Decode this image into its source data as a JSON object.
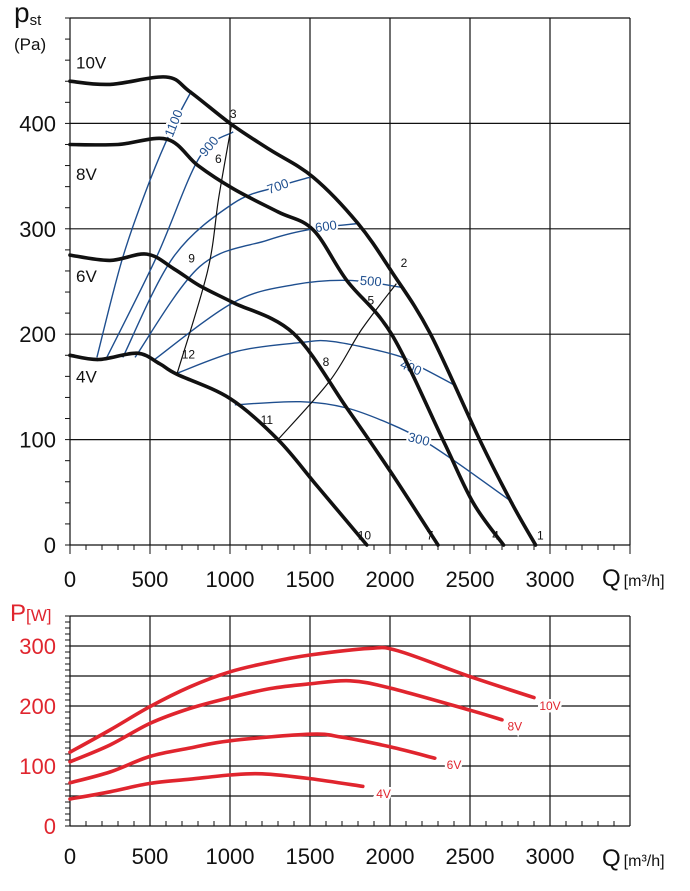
{
  "chart_data": [
    {
      "type": "line",
      "title": "",
      "ylabel_main": "p",
      "ylabel_sub": "st",
      "ylabel_unit": "(Pa)",
      "xlabel_main": "Q",
      "xlabel_unit": "[m³/h]",
      "xlim": [
        0,
        3500
      ],
      "ylim": [
        0,
        500
      ],
      "grid": true,
      "x_ticks": [
        "0",
        "500",
        "1000",
        "1500",
        "2000",
        "2500",
        "3000"
      ],
      "y_ticks": [
        "0",
        "100",
        "200",
        "300",
        "400"
      ],
      "series": [
        {
          "name": "10V",
          "label_at": [
            0,
            458
          ],
          "points": [
            [
              0,
              440
            ],
            [
              250,
              437
            ],
            [
              600,
              444
            ],
            [
              750,
              430
            ],
            [
              1010,
              399
            ],
            [
              1250,
              375
            ],
            [
              1520,
              349
            ],
            [
              1800,
              305
            ],
            [
              2012,
              259
            ],
            [
              2250,
              201
            ],
            [
              2560,
              100
            ],
            [
              2760,
              40
            ],
            [
              2910,
              0
            ]
          ]
        },
        {
          "name": "8V",
          "label_at": [
            0,
            352
          ],
          "points": [
            [
              0,
              380
            ],
            [
              300,
              380
            ],
            [
              606,
              385
            ],
            [
              800,
              360
            ],
            [
              1020,
              338
            ],
            [
              1300,
              316
            ],
            [
              1520,
              299
            ],
            [
              1730,
              251
            ],
            [
              2010,
              200
            ],
            [
              2330,
              100
            ],
            [
              2520,
              40
            ],
            [
              2710,
              0
            ]
          ]
        },
        {
          "name": "6V",
          "label_at": [
            0,
            255
          ],
          "points": [
            [
              0,
              275
            ],
            [
              250,
              270
            ],
            [
              480,
              276
            ],
            [
              650,
              262
            ],
            [
              810,
              246
            ],
            [
              1020,
              230
            ],
            [
              1395,
              201
            ],
            [
              1730,
              130
            ],
            [
              2010,
              68
            ],
            [
              2300,
              0
            ]
          ]
        },
        {
          "name": "4V",
          "label_at": [
            0,
            160
          ],
          "points": [
            [
              0,
              180
            ],
            [
              180,
              176
            ],
            [
              420,
              182
            ],
            [
              560,
              172
            ],
            [
              668,
              162
            ],
            [
              1000,
              139
            ],
            [
              1300,
              100
            ],
            [
              1550,
              55
            ],
            [
              1855,
              0
            ]
          ]
        }
      ],
      "iso_lines": [
        {
          "label": "1100",
          "label_at": [
            650,
            400
          ],
          "points": [
            [
              168,
              178
            ],
            [
              330,
              273
            ],
            [
              500,
              346
            ],
            [
              640,
              396
            ],
            [
              760,
              431
            ]
          ]
        },
        {
          "label": "900",
          "label_at": [
            870,
            378
          ],
          "points": [
            [
              230,
              178
            ],
            [
              540,
              273
            ],
            [
              810,
              368
            ],
            [
              1020,
              392
            ]
          ]
        },
        {
          "label": "700",
          "label_at": [
            1300,
            340
          ],
          "points": [
            [
              330,
              178
            ],
            [
              645,
              273
            ],
            [
              1020,
              324
            ],
            [
              1300,
              340
            ],
            [
              1500,
              349
            ]
          ]
        },
        {
          "label": "600",
          "label_at": [
            1600,
            302
          ],
          "points": [
            [
              406,
              178
            ],
            [
              810,
              264
            ],
            [
              1230,
              289
            ],
            [
              1520,
              300
            ],
            [
              1800,
              305
            ]
          ]
        },
        {
          "label": "500",
          "label_at": [
            1880,
            250
          ],
          "points": [
            [
              520,
              175
            ],
            [
              1020,
              230
            ],
            [
              1400,
              247
            ],
            [
              1750,
              251
            ],
            [
              2090,
              244
            ]
          ]
        },
        {
          "label": "400",
          "label_at": [
            2130,
            168
          ],
          "points": [
            [
              670,
              163
            ],
            [
              1050,
              184
            ],
            [
              1440,
              192
            ],
            [
              1645,
              193
            ],
            [
              2040,
              180
            ],
            [
              2200,
              168
            ],
            [
              2400,
              152
            ]
          ]
        },
        {
          "label": "300",
          "label_at": [
            2180,
            100
          ],
          "points": [
            [
              1030,
              133
            ],
            [
              1440,
              136
            ],
            [
              1730,
              130
            ],
            [
              2000,
              115
            ],
            [
              2200,
              100
            ],
            [
              2420,
              78
            ],
            [
              2770,
              40
            ]
          ]
        }
      ],
      "system_lines": [
        {
          "points": [
            [
              1010,
              399
            ],
            [
              930,
              330
            ],
            [
              860,
              260
            ],
            [
              668,
              162
            ]
          ]
        },
        {
          "points": [
            [
              2040,
              248
            ],
            [
              1825,
              205
            ],
            [
              1625,
              156
            ],
            [
              1300,
              100
            ]
          ]
        }
      ],
      "point_labels": [
        {
          "text": "1",
          "at": [
            2940,
            5
          ]
        },
        {
          "text": "2",
          "at": [
            2050,
            262
          ]
        },
        {
          "text": "3",
          "at": [
            1020,
            405
          ]
        },
        {
          "text": "4",
          "at": [
            2660,
            5
          ]
        },
        {
          "text": "5",
          "at": [
            1880,
            228
          ]
        },
        {
          "text": "6",
          "at": [
            890,
            385
          ]
        },
        {
          "text": "7",
          "at": [
            2250,
            5
          ]
        },
        {
          "text": "8",
          "at": [
            1600,
            170
          ]
        },
        {
          "text": "9",
          "at": [
            760,
            268
          ]
        },
        {
          "text": "10",
          "at": [
            1840,
            5
          ]
        },
        {
          "text": "11",
          "at": [
            1230,
            115
          ]
        },
        {
          "text": "12",
          "at": [
            740,
            177
          ]
        }
      ]
    },
    {
      "type": "line",
      "title": "",
      "ylabel_main": "P",
      "ylabel_unit": "[W]",
      "xlabel_main": "Q",
      "xlabel_unit": "[m³/h]",
      "xlim": [
        0,
        3500
      ],
      "ylim": [
        0,
        350
      ],
      "grid": true,
      "x_ticks": [
        "0",
        "500",
        "1000",
        "1500",
        "2000",
        "2500",
        "3000"
      ],
      "y_ticks": [
        "0",
        "100",
        "200",
        "300"
      ],
      "series": [
        {
          "name": "10V",
          "label_at": [
            3000,
            200
          ],
          "points": [
            [
              0,
              123
            ],
            [
              250,
              160
            ],
            [
              500,
              199
            ],
            [
              750,
              232
            ],
            [
              1000,
              257
            ],
            [
              1250,
              273
            ],
            [
              1500,
              285
            ],
            [
              1870,
              296
            ],
            [
              2050,
              292
            ],
            [
              2500,
              249
            ],
            [
              2900,
              214
            ]
          ]
        },
        {
          "name": "8V",
          "label_at": [
            2780,
            166
          ],
          "points": [
            [
              0,
              107
            ],
            [
              250,
              135
            ],
            [
              500,
              171
            ],
            [
              750,
              196
            ],
            [
              1000,
              214
            ],
            [
              1250,
              229
            ],
            [
              1500,
              237
            ],
            [
              1750,
              242
            ],
            [
              2000,
              230
            ],
            [
              2500,
              193
            ],
            [
              2700,
              177
            ]
          ]
        },
        {
          "name": "6V",
          "label_at": [
            2400,
            102
          ],
          "points": [
            [
              0,
              72
            ],
            [
              250,
              90
            ],
            [
              500,
              116
            ],
            [
              750,
              130
            ],
            [
              1000,
              142
            ],
            [
              1500,
              153
            ],
            [
              1700,
              148
            ],
            [
              2000,
              132
            ],
            [
              2280,
              113
            ]
          ]
        },
        {
          "name": "4V",
          "label_at": [
            1960,
            53
          ],
          "points": [
            [
              0,
              45
            ],
            [
              250,
              57
            ],
            [
              500,
              71
            ],
            [
              750,
              78
            ],
            [
              1000,
              85
            ],
            [
              1200,
              87
            ],
            [
              1500,
              79
            ],
            [
              1830,
              66
            ]
          ]
        }
      ]
    }
  ],
  "colors": {
    "pressure": "#111111",
    "iso": "#1f4f8f",
    "power": "#e0252e",
    "grid": "#111111"
  }
}
